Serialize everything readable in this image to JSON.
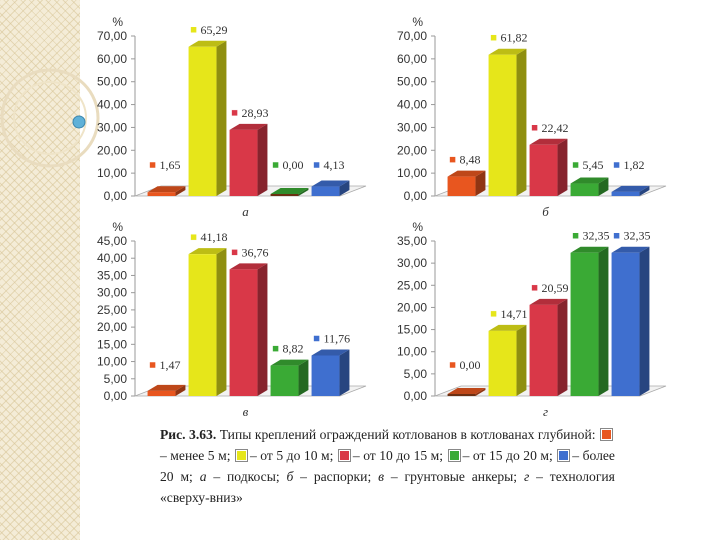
{
  "colors": {
    "c5": "#e8561f",
    "c5_10": "#e6e61a",
    "c10_15": "#d93848",
    "c15_20": "#3aaa35",
    "c20": "#3f6fcf",
    "lt5": "#6b2f12"
  },
  "charts": [
    {
      "percent_label": "%",
      "panel_label": "а",
      "chart_data": {
        "type": "bar",
        "categories": [
          "менее 5 м",
          "от 5 до 10 м",
          "от 10 до 15 м",
          "от 15 до 20 м",
          "более 20 м"
        ],
        "values": [
          1.65,
          65.29,
          28.93,
          0.0,
          4.13
        ],
        "value_labels": [
          "1,65",
          "65,29",
          "28,93",
          "0,00",
          "4,13"
        ],
        "ylim": [
          0,
          70
        ],
        "yticks": [
          "0,00",
          "10,00",
          "20,00",
          "30,00",
          "40,00",
          "50,00",
          "60,00",
          "70,00"
        ]
      }
    },
    {
      "percent_label": "%",
      "panel_label": "б",
      "chart_data": {
        "type": "bar",
        "categories": [
          "менее 5 м",
          "от 5 до 10 м",
          "от 10 до 15 м",
          "от 15 до 20 м",
          "более 20 м"
        ],
        "values": [
          8.48,
          61.82,
          22.42,
          5.45,
          1.82
        ],
        "value_labels": [
          "8,48",
          "61,82",
          "22,42",
          "5,45",
          "1,82"
        ],
        "ylim": [
          0,
          70
        ],
        "yticks": [
          "0,00",
          "10,00",
          "20,00",
          "30,00",
          "40,00",
          "50,00",
          "60,00",
          "70,00"
        ]
      }
    },
    {
      "percent_label": "%",
      "panel_label": "в",
      "chart_data": {
        "type": "bar",
        "categories": [
          "менее 5 м",
          "от 5 до 10 м",
          "от 10 до 15 м",
          "от 15 до 20 м",
          "более 20 м"
        ],
        "values": [
          1.47,
          41.18,
          36.76,
          8.82,
          11.76
        ],
        "value_labels": [
          "1,47",
          "41,18",
          "36,76",
          "8,82",
          "11,76"
        ],
        "ylim": [
          0,
          45
        ],
        "yticks": [
          "0,00",
          "5,00",
          "10,00",
          "15,00",
          "20,00",
          "25,00",
          "30,00",
          "35,00",
          "40,00",
          "45,00"
        ]
      }
    },
    {
      "percent_label": "%",
      "panel_label": "г",
      "chart_data": {
        "type": "bar",
        "categories": [
          "менее 5 м",
          "от 5 до 10 м",
          "от 10 до 15 м",
          "от 15 до 20 м",
          "более 20 м"
        ],
        "values": [
          0.0,
          14.71,
          20.59,
          32.35,
          32.35
        ],
        "value_labels": [
          "0,00",
          "14,71",
          "20,59",
          "32,35",
          "32,35"
        ],
        "ylim": [
          0,
          35
        ],
        "yticks": [
          "0,00",
          "5,00",
          "10,00",
          "15,00",
          "20,00",
          "25,00",
          "30,00",
          "35,00"
        ]
      }
    }
  ],
  "caption": {
    "fig": "Рис. 3.63.",
    "p1": "Типы креплений ограждений котлованов в котлованах глубиной:",
    "l1": "– менее 5 м;",
    "l2": "– от 5 до 10 м;",
    "l3": "– от 10 до 15 м;",
    "l4": "– от 15 до 20 м;",
    "l5": "– более 20 м;",
    "a_letter": "а",
    "a_text": "– подкосы;",
    "b_letter": "б",
    "b_text": "– распорки;",
    "v_letter": "в",
    "v_text": "– грунтовые анкеры;",
    "g_letter": "г",
    "g_text": "– технология «сверху-вниз»"
  }
}
